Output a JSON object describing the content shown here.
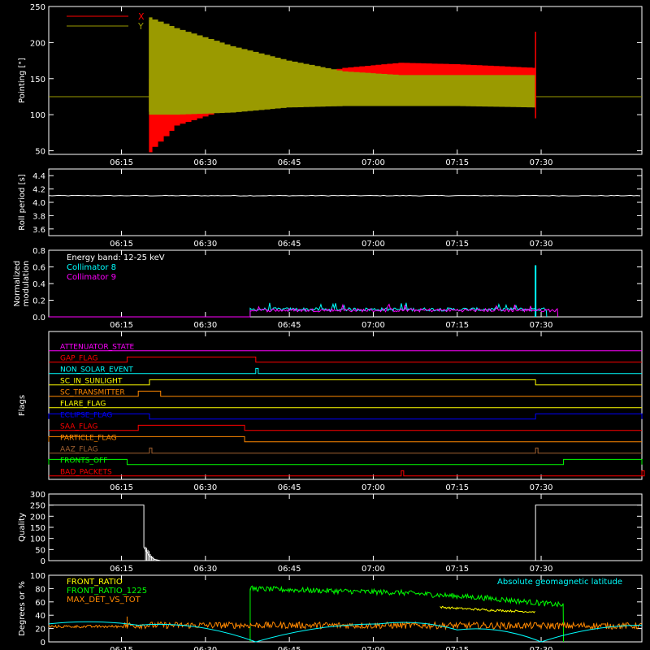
{
  "colors": {
    "background": "#000000",
    "axis": "#ffffff",
    "red": "#ff0000",
    "olive": "#9a9a00",
    "cyan": "#00ffff",
    "magenta": "#ff00ff",
    "white": "#ffffff",
    "green": "#00ff00",
    "orange": "#ff8800",
    "yellow": "#ffff00",
    "blue": "#0000ff",
    "brown": "#a06030"
  },
  "time_ticks": [
    "06:15",
    "06:30",
    "06:45",
    "07:00",
    "07:15",
    "07:30"
  ],
  "time_range": [
    "06:02",
    "07:48"
  ],
  "chart_data": [
    {
      "id": "pointing",
      "type": "line",
      "ylabel": "Pointing [\"]",
      "ylim": [
        45,
        250
      ],
      "yticks": [
        50,
        100,
        150,
        200,
        250
      ],
      "legend": [
        {
          "name": "X",
          "color": "red"
        },
        {
          "name": "Y",
          "color": "olive"
        }
      ],
      "series": [
        {
          "name": "X",
          "color": "red",
          "segments": [
            {
              "x": [
                "06:02",
                "06:20"
              ],
              "lo": [
                125,
                125
              ],
              "hi": [
                125,
                125
              ]
            },
            {
              "x": [
                "06:20",
                "06:25",
                "06:35",
                "06:45",
                "06:55",
                "07:05",
                "07:15",
                "07:29"
              ],
              "lo": [
                48,
                85,
                110,
                125,
                130,
                130,
                130,
                130
              ],
              "hi": [
                150,
                145,
                140,
                150,
                165,
                172,
                170,
                165
              ]
            },
            {
              "x": [
                "07:29",
                "07:48"
              ],
              "lo": [
                125,
                125
              ],
              "hi": [
                125,
                125
              ]
            }
          ]
        },
        {
          "name": "Y",
          "color": "olive",
          "segments": [
            {
              "x": [
                "06:02",
                "06:20"
              ],
              "lo": [
                125,
                125
              ],
              "hi": [
                125,
                125
              ]
            },
            {
              "x": [
                "06:20",
                "06:25",
                "06:35",
                "06:45",
                "06:55",
                "07:05",
                "07:15",
                "07:29"
              ],
              "lo": [
                100,
                100,
                103,
                110,
                112,
                112,
                112,
                110
              ],
              "hi": [
                235,
                220,
                195,
                175,
                160,
                155,
                155,
                155
              ]
            },
            {
              "x": [
                "07:29",
                "07:48"
              ],
              "lo": [
                125,
                125
              ],
              "hi": [
                125,
                125
              ]
            }
          ]
        }
      ]
    },
    {
      "id": "roll",
      "type": "line",
      "ylabel": "Roll period [s]",
      "ylim": [
        3.5,
        4.5
      ],
      "yticks": [
        "3.6",
        "3.8",
        "4.0",
        "4.2",
        "4.4"
      ],
      "series": [
        {
          "name": "",
          "color": "white",
          "x": [
            "06:02",
            "07:48"
          ],
          "y": [
            4.1,
            4.1
          ]
        }
      ]
    },
    {
      "id": "modulation",
      "type": "line",
      "ylabel": "Normalized modulation",
      "ylim": [
        0,
        0.8
      ],
      "yticks": [
        "0.0",
        "0.2",
        "0.4",
        "0.6",
        "0.8"
      ],
      "annotation": "Energy band: 12-25 keV",
      "legend": [
        {
          "name": "Collimator 8",
          "color": "cyan"
        },
        {
          "name": "Collimator 9",
          "color": "magenta"
        }
      ],
      "series": [
        {
          "name": "Collimator 8",
          "color": "cyan",
          "x": [
            "06:38",
            "07:31"
          ],
          "level": 0.09,
          "peak": {
            "x": "07:29",
            "y": 0.62
          }
        },
        {
          "name": "Collimator 9",
          "color": "magenta",
          "x": [
            "06:38",
            "07:33"
          ],
          "level": 0.08
        }
      ]
    },
    {
      "id": "flags",
      "type": "step",
      "ylabel": "Flags",
      "series": [
        {
          "name": "ATTENUATOR_STATE",
          "color": "magenta",
          "high": []
        },
        {
          "name": "GAP_FLAG",
          "color": "red",
          "high": [
            [
              "06:16",
              "06:39"
            ]
          ]
        },
        {
          "name": "NON_SOLAR_EVENT",
          "color": "cyan",
          "high": [
            [
              "06:39",
              "06:39"
            ]
          ]
        },
        {
          "name": "SC_IN_SUNLIGHT",
          "color": "yellow",
          "high": [
            [
              "06:20",
              "07:29"
            ]
          ]
        },
        {
          "name": "SC_TRANSMITTER",
          "color": "orange",
          "high": [
            [
              "06:18",
              "06:22"
            ]
          ]
        },
        {
          "name": "FLARE_FLAG",
          "color": "yellow",
          "high": []
        },
        {
          "name": "ECLIPSE_FLAG",
          "color": "blue",
          "high": [
            [
              "06:02",
              "06:20"
            ],
            [
              "07:29",
              "07:48"
            ]
          ]
        },
        {
          "name": "SAA_FLAG",
          "color": "red",
          "high": [
            [
              "06:18",
              "06:37"
            ]
          ]
        },
        {
          "name": "PARTICLE_FLAG",
          "color": "orange",
          "high": [
            [
              "06:02",
              "06:37"
            ]
          ]
        },
        {
          "name": "AAZ_FLAG",
          "color": "brown",
          "high": [
            [
              "06:20",
              "06:20"
            ],
            [
              "07:29",
              "07:29"
            ]
          ]
        },
        {
          "name": "FRONTS_OFF",
          "color": "green",
          "high": [
            [
              "06:02",
              "06:16"
            ],
            [
              "07:34",
              "07:48"
            ]
          ]
        },
        {
          "name": "BAD_PACKETS",
          "color": "red",
          "high": [
            [
              "07:05",
              "07:05"
            ],
            [
              "07:48",
              "07:48"
            ]
          ]
        }
      ]
    },
    {
      "id": "quality",
      "type": "line",
      "ylabel": "Quality",
      "ylim": [
        0,
        300
      ],
      "yticks": [
        0,
        50,
        100,
        150,
        200,
        250,
        300
      ],
      "series": [
        {
          "name": "",
          "color": "white",
          "x": [
            "06:02",
            "06:19",
            "06:19",
            "06:20",
            "06:21",
            "06:22",
            "07:29",
            "07:29",
            "07:48"
          ],
          "y": [
            250,
            250,
            60,
            20,
            5,
            0,
            0,
            250,
            250
          ]
        }
      ]
    },
    {
      "id": "ratios",
      "type": "line",
      "ylabel": "Degrees or %",
      "ylim": [
        0,
        100
      ],
      "yticks": [
        0,
        20,
        40,
        60,
        80,
        100
      ],
      "annotation": "Absolute geomagnetic latitude",
      "legend": [
        {
          "name": "FRONT_RATIO",
          "color": "yellow"
        },
        {
          "name": "FRONT_RATIO_1225",
          "color": "green"
        },
        {
          "name": "MAX_DET_VS_TOT",
          "color": "orange"
        }
      ],
      "series": [
        {
          "name": "FRONT_RATIO",
          "color": "yellow",
          "x": [
            "07:12",
            "07:20",
            "07:29"
          ],
          "y": [
            52,
            48,
            45
          ]
        },
        {
          "name": "FRONT_RATIO_1225",
          "color": "green",
          "x": [
            "06:38",
            "06:50",
            "07:05",
            "07:20",
            "07:34"
          ],
          "y": [
            80,
            77,
            74,
            66,
            55
          ]
        },
        {
          "name": "MAX_DET_VS_TOT",
          "color": "orange",
          "x": [
            "06:02",
            "06:16",
            "06:38",
            "07:48"
          ],
          "y": [
            23,
            25,
            25,
            24
          ]
        },
        {
          "name": "Absolute geomagnetic latitude",
          "color": "cyan",
          "x": [
            "06:02",
            "06:18",
            "06:39",
            "07:01",
            "07:15",
            "07:30",
            "07:48"
          ],
          "y": [
            27,
            25,
            0,
            27,
            18,
            0,
            25
          ]
        }
      ]
    }
  ]
}
